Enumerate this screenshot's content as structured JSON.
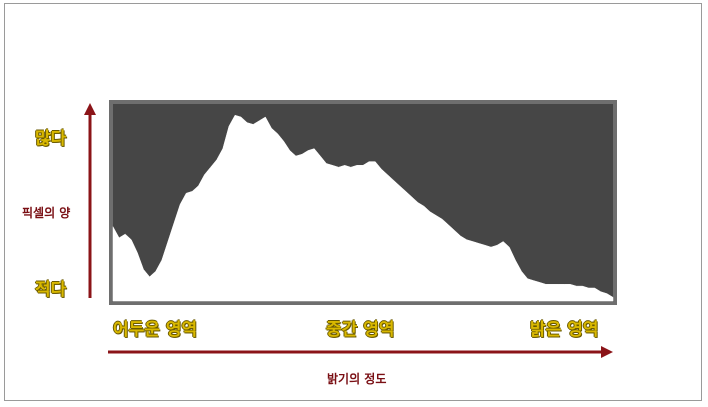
{
  "labels": {
    "many": "많다",
    "few": "적다",
    "pixel_amount": "픽셀의 양",
    "dark_area": "어두운 영역",
    "mid_area": "중간 영역",
    "bright_area": "밝은 영역",
    "brightness": "밝기의 정도"
  },
  "colors": {
    "histogram_bg": "#464646",
    "histogram_fill": "#ffffff",
    "arrow": "#8b1418",
    "label_gold": "#d9b800"
  },
  "chart_data": {
    "type": "area",
    "values": [
      0.4,
      0.34,
      0.36,
      0.33,
      0.26,
      0.17,
      0.13,
      0.16,
      0.22,
      0.32,
      0.42,
      0.52,
      0.58,
      0.59,
      0.62,
      0.68,
      0.72,
      0.76,
      0.82,
      0.94,
      1.0,
      0.99,
      0.96,
      0.95,
      0.97,
      0.99,
      0.93,
      0.9,
      0.86,
      0.81,
      0.78,
      0.79,
      0.81,
      0.82,
      0.78,
      0.74,
      0.73,
      0.72,
      0.73,
      0.72,
      0.73,
      0.73,
      0.75,
      0.75,
      0.71,
      0.68,
      0.65,
      0.62,
      0.59,
      0.56,
      0.53,
      0.51,
      0.48,
      0.46,
      0.44,
      0.41,
      0.38,
      0.35,
      0.33,
      0.32,
      0.31,
      0.3,
      0.29,
      0.3,
      0.32,
      0.29,
      0.22,
      0.16,
      0.12,
      0.11,
      0.1,
      0.09,
      0.09,
      0.09,
      0.09,
      0.09,
      0.08,
      0.08,
      0.07,
      0.07,
      0.05,
      0.04,
      0.02
    ],
    "ylim": [
      0,
      1.06
    ]
  }
}
